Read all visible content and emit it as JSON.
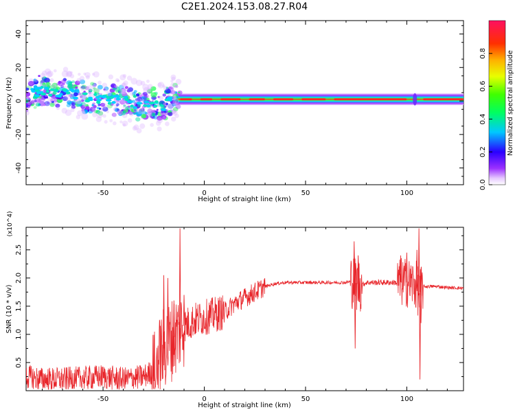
{
  "title": "C2E1.2024.153.08.27.R04",
  "colors": {
    "snr_line": "#e8262b"
  },
  "chart_data": [
    {
      "type": "heatmap",
      "name": "spectrogram",
      "xlabel": "Height of straight line (km)",
      "ylabel": "Frequency (Hz)",
      "xlim": [
        -88,
        128
      ],
      "ylim": [
        -50,
        48
      ],
      "xticks": [
        "-50",
        "0",
        "50",
        "100"
      ],
      "yticks": [
        "-40",
        "-20",
        "0",
        "20",
        "40"
      ],
      "colormap": "rainbow (violet → blue → cyan → green → yellow → red)",
      "grid": false,
      "colorbar": {
        "label": "Normalized spectral amplitude",
        "range": [
          0,
          1
        ],
        "ticks": [
          "0.0",
          "0.2",
          "0.4",
          "0.6",
          "0.8"
        ]
      },
      "signal_track": [
        {
          "x": -86,
          "f": 5
        },
        {
          "x": -80,
          "f": 6
        },
        {
          "x": -74,
          "f": 4
        },
        {
          "x": -68,
          "f": 5
        },
        {
          "x": -62,
          "f": 3
        },
        {
          "x": -56,
          "f": 2
        },
        {
          "x": -50,
          "f": 1
        },
        {
          "x": -44,
          "f": 1
        },
        {
          "x": -38,
          "f": 0
        },
        {
          "x": -32,
          "f": -3
        },
        {
          "x": -26,
          "f": -2
        },
        {
          "x": -20,
          "f": -3
        },
        {
          "x": -16,
          "f": 1
        },
        {
          "x": -12,
          "f": 1
        },
        {
          "x": 0,
          "f": 1
        },
        {
          "x": 20,
          "f": 1
        },
        {
          "x": 50,
          "f": 1
        },
        {
          "x": 75,
          "f": 1
        },
        {
          "x": 100,
          "f": 1
        },
        {
          "x": 128,
          "f": 1
        }
      ]
    },
    {
      "type": "line",
      "name": "snr",
      "xlabel": "Height of straight line (km)",
      "ylabel": "SNR (10 * v/v)",
      "y_multiplier": "(x10^4)",
      "xlim": [
        -88,
        128
      ],
      "ylim": [
        0,
        2.9
      ],
      "xticks": [
        "-50",
        "0",
        "50",
        "100"
      ],
      "yticks": [
        "0.5",
        "1.0",
        "1.5",
        "2.0",
        "2.5"
      ],
      "grid": false,
      "series": [
        {
          "x": [
            -88,
            -80,
            -70,
            -60,
            -50,
            -40,
            -30,
            -25,
            -20,
            -15,
            -12,
            -10,
            -5,
            0,
            5,
            10,
            15,
            20,
            25,
            30,
            35,
            40,
            50,
            60,
            70,
            73,
            75,
            78,
            80,
            85,
            90,
            95,
            100,
            103,
            105,
            106,
            108,
            110,
            115,
            120,
            128
          ],
          "y": [
            0.25,
            0.2,
            0.2,
            0.22,
            0.25,
            0.2,
            0.25,
            0.35,
            0.75,
            0.95,
            1.1,
            1.15,
            1.25,
            1.3,
            1.35,
            1.4,
            1.55,
            1.65,
            1.75,
            1.85,
            1.9,
            1.92,
            1.92,
            1.92,
            1.92,
            1.95,
            1.9,
            1.88,
            1.92,
            1.92,
            1.92,
            1.92,
            1.92,
            1.9,
            1.85,
            1.7,
            1.85,
            1.85,
            1.85,
            1.83,
            1.82
          ]
        }
      ],
      "spikes": [
        {
          "x": -20,
          "y": 2.05
        },
        {
          "x": -18,
          "y": 2.0
        },
        {
          "x": -15,
          "y": 1.6
        },
        {
          "x": -12,
          "y": 2.88
        },
        {
          "x": -10,
          "y": 1.7
        },
        {
          "x": 74,
          "y": 2.65
        },
        {
          "x": 74.5,
          "y": 0.75
        },
        {
          "x": 76,
          "y": 2.4
        },
        {
          "x": 97,
          "y": 2.4
        },
        {
          "x": 100,
          "y": 2.45
        },
        {
          "x": 105,
          "y": 2.5
        },
        {
          "x": 106,
          "y": 2.88
        },
        {
          "x": 106.5,
          "y": 0.2
        },
        {
          "x": 107,
          "y": 1.2
        }
      ]
    }
  ]
}
